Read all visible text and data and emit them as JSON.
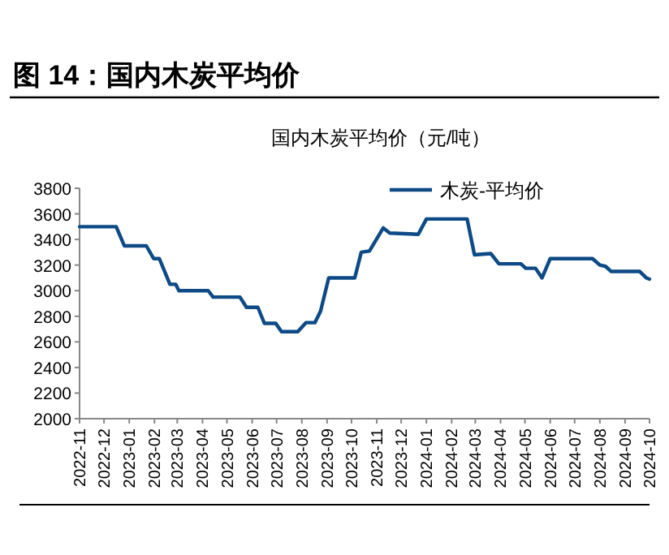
{
  "chart_data": {
    "type": "line",
    "title": "图 14：国内木炭平均价",
    "subtitle": "国内木炭平均价（元/吨）",
    "x": [
      "2022-11-01",
      "2022-12-16",
      "2022-12-26",
      "2023-01-22",
      "2023-01-31",
      "2023-02-07",
      "2023-02-20",
      "2023-02-27",
      "2023-03-03",
      "2023-04-08",
      "2023-04-14",
      "2023-05-17",
      "2023-05-25",
      "2023-06-08",
      "2023-06-16",
      "2023-06-30",
      "2023-07-07",
      "2023-07-27",
      "2023-08-06",
      "2023-08-17",
      "2023-08-24",
      "2023-09-03",
      "2023-10-05",
      "2023-10-13",
      "2023-10-23",
      "2023-11-09",
      "2023-11-17",
      "2023-12-22",
      "2024-01-01",
      "2024-02-20",
      "2024-02-29",
      "2024-03-20",
      "2024-03-30",
      "2024-04-26",
      "2024-05-02",
      "2024-05-14",
      "2024-05-22",
      "2024-06-01",
      "2024-07-23",
      "2024-08-01",
      "2024-08-08",
      "2024-08-15",
      "2024-09-19",
      "2024-09-27",
      "2024-10-01"
    ],
    "series": [
      {
        "name": "木炭-平均价",
        "color": "#0d4a86",
        "values": [
          3500,
          3500,
          3350,
          3350,
          3250,
          3250,
          3050,
          3050,
          3000,
          3000,
          2950,
          2950,
          2870,
          2870,
          2745,
          2745,
          2680,
          2680,
          2750,
          2750,
          2840,
          3100,
          3100,
          3300,
          3310,
          3490,
          3450,
          3440,
          3560,
          3560,
          3280,
          3290,
          3210,
          3210,
          3175,
          3175,
          3100,
          3250,
          3250,
          3200,
          3190,
          3150,
          3150,
          3100,
          3090
        ]
      }
    ],
    "xlim": [
      "2022-11",
      "2024-10"
    ],
    "xticks": [
      "2022-11",
      "2022-12",
      "2023-01",
      "2023-02",
      "2023-03",
      "2023-04",
      "2023-05",
      "2023-06",
      "2023-07",
      "2023-08",
      "2023-09",
      "2023-10",
      "2023-11",
      "2023-12",
      "2024-01",
      "2024-02",
      "2024-03",
      "2024-04",
      "2024-05",
      "2024-06",
      "2024-07",
      "2024-08",
      "2024-09",
      "2024-10"
    ],
    "ylim": [
      2000,
      3800
    ],
    "yticks": [
      2000,
      2200,
      2400,
      2600,
      2800,
      3000,
      3200,
      3400,
      3600,
      3800
    ],
    "grid": false,
    "legend": "top right",
    "line_style": "solid",
    "marker": "none"
  }
}
